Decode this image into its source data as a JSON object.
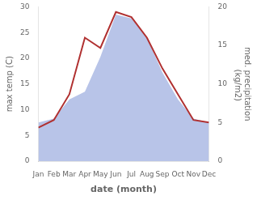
{
  "chart_data": {
    "type": "line",
    "categories": [
      "Jan",
      "Feb",
      "Mar",
      "Apr",
      "May",
      "Jun",
      "Jul",
      "Aug",
      "Sep",
      "Oct",
      "Nov",
      "Dec"
    ],
    "series": [
      {
        "type": "area",
        "axis": "y2",
        "color": "#b8c4e8",
        "values": [
          5.0,
          5.5,
          8.0,
          9.0,
          13.5,
          19.0,
          18.5,
          16.0,
          11.5,
          8.0,
          5.5,
          5.0
        ]
      },
      {
        "type": "line",
        "axis": "y",
        "color": "#b03030",
        "values": [
          6.5,
          8.0,
          13.0,
          24.0,
          22.0,
          29.0,
          28.0,
          24.0,
          18.0,
          13.0,
          8.0,
          7.5
        ]
      }
    ],
    "x_label": "date (month)",
    "y_label": "max temp (C)",
    "y2_label": "med. precipitation\n (kg/m2)",
    "ylim": [
      0,
      30
    ],
    "yticks": [
      0,
      5,
      10,
      15,
      20,
      25,
      30
    ],
    "y2lim": [
      0,
      20
    ],
    "y2ticks": [
      0,
      5,
      10,
      15,
      20
    ],
    "grid": false
  }
}
